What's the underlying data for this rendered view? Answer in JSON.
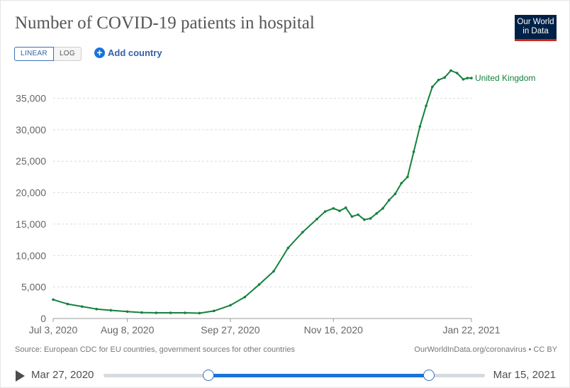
{
  "header": {
    "title": "Number of COVID-19 patients in hospital",
    "logo_line1": "Our World",
    "logo_line2": "in Data"
  },
  "controls": {
    "linear_label": "LINEAR",
    "log_label": "LOG",
    "add_country_label": "Add country",
    "add_icon": "plus-circle-icon"
  },
  "chart_data": {
    "type": "line",
    "title": "Number of COVID-19 patients in hospital",
    "xlabel": "",
    "ylabel": "",
    "ylim": [
      0,
      39000
    ],
    "grid": true,
    "y_ticks": [
      0,
      5000,
      10000,
      15000,
      20000,
      25000,
      30000,
      35000
    ],
    "y_tick_labels": [
      "0",
      "5,000",
      "10,000",
      "15,000",
      "20,000",
      "25,000",
      "30,000",
      "35,000"
    ],
    "x_start": "2020-07-03",
    "x_end": "2021-01-22",
    "x_ticks": [
      "2020-07-03",
      "2020-08-08",
      "2020-09-27",
      "2020-11-16",
      "2021-01-22"
    ],
    "x_tick_labels": [
      "Jul 3, 2020",
      "Aug 8, 2020",
      "Sep 27, 2020",
      "Nov 16, 2020",
      "Jan 22, 2021"
    ],
    "color": "#16813f",
    "series": [
      {
        "name": "United Kingdom",
        "label": "United Kingdom",
        "dates": [
          "2020-07-03",
          "2020-07-10",
          "2020-07-17",
          "2020-07-24",
          "2020-07-31",
          "2020-08-08",
          "2020-08-15",
          "2020-08-22",
          "2020-08-29",
          "2020-09-05",
          "2020-09-12",
          "2020-09-19",
          "2020-09-27",
          "2020-10-04",
          "2020-10-11",
          "2020-10-18",
          "2020-10-25",
          "2020-11-01",
          "2020-11-08",
          "2020-11-12",
          "2020-11-16",
          "2020-11-19",
          "2020-11-22",
          "2020-11-25",
          "2020-11-28",
          "2020-12-01",
          "2020-12-04",
          "2020-12-07",
          "2020-12-10",
          "2020-12-13",
          "2020-12-16",
          "2020-12-19",
          "2020-12-22",
          "2020-12-25",
          "2020-12-28",
          "2020-12-31",
          "2021-01-03",
          "2021-01-06",
          "2021-01-09",
          "2021-01-12",
          "2021-01-15",
          "2021-01-18",
          "2021-01-20",
          "2021-01-22"
        ],
        "values": [
          3000,
          2300,
          1900,
          1500,
          1300,
          1100,
          950,
          900,
          900,
          900,
          850,
          1200,
          2100,
          3400,
          5400,
          7500,
          11200,
          13700,
          15800,
          17000,
          17500,
          17100,
          17600,
          16200,
          16500,
          15700,
          15900,
          16700,
          17500,
          18800,
          19800,
          21500,
          22500,
          26500,
          30500,
          33800,
          36800,
          37900,
          38300,
          39400,
          39000,
          38000,
          38200,
          38200
        ]
      }
    ]
  },
  "footer": {
    "source": "Source: European CDC for EU countries, government sources for other countries",
    "credit": "OurWorldInData.org/coronavirus • CC BY"
  },
  "timeline": {
    "start_label": "Mar 27, 2020",
    "end_label": "Mar 15, 2021",
    "range_start_fraction": 0.276,
    "range_end_fraction": 0.853,
    "play_icon": "play-icon"
  }
}
